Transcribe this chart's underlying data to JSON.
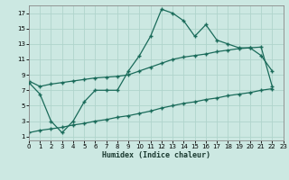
{
  "xlabel": "Humidex (Indice chaleur)",
  "background_color": "#cce8e2",
  "grid_color": "#b0d4cc",
  "line_color": "#1a6b5a",
  "x_ticks": [
    0,
    1,
    2,
    3,
    4,
    5,
    6,
    7,
    8,
    9,
    10,
    11,
    12,
    13,
    14,
    15,
    16,
    17,
    18,
    19,
    20,
    21,
    22,
    23
  ],
  "y_ticks": [
    1,
    3,
    5,
    7,
    9,
    11,
    13,
    15,
    17
  ],
  "xlim": [
    0,
    23
  ],
  "ylim": [
    0.5,
    18
  ],
  "main_x": [
    0,
    1,
    2,
    3,
    4,
    5,
    6,
    7,
    8,
    9,
    10,
    11,
    12,
    13,
    14,
    15,
    16,
    17,
    18,
    19,
    20,
    21,
    22
  ],
  "main_y": [
    8,
    6.5,
    3,
    1.5,
    3,
    5.5,
    7,
    7,
    7,
    9.5,
    11.5,
    14,
    17.5,
    17,
    16,
    14,
    15.5,
    13.5,
    13,
    12.5,
    12.5,
    11.5,
    9.5
  ],
  "upper_x": [
    0,
    1,
    2,
    3,
    4,
    5,
    6,
    7,
    8,
    9,
    10,
    11,
    12,
    13,
    14,
    15,
    16,
    17,
    18,
    19,
    20,
    21,
    22
  ],
  "upper_y": [
    8.2,
    7.5,
    7.8,
    8.0,
    8.2,
    8.4,
    8.6,
    8.7,
    8.8,
    9.0,
    9.5,
    10.0,
    10.5,
    11.0,
    11.3,
    11.5,
    11.7,
    12.0,
    12.2,
    12.4,
    12.5,
    12.6,
    7.5
  ],
  "lower_x": [
    0,
    1,
    2,
    3,
    4,
    5,
    6,
    7,
    8,
    9,
    10,
    11,
    12,
    13,
    14,
    15,
    16,
    17,
    18,
    19,
    20,
    21,
    22
  ],
  "lower_y": [
    1.5,
    1.8,
    2.0,
    2.2,
    2.5,
    2.7,
    3.0,
    3.2,
    3.5,
    3.7,
    4.0,
    4.3,
    4.7,
    5.0,
    5.3,
    5.5,
    5.8,
    6.0,
    6.3,
    6.5,
    6.7,
    7.0,
    7.2
  ],
  "markersize": 2.5,
  "linewidth": 0.9
}
